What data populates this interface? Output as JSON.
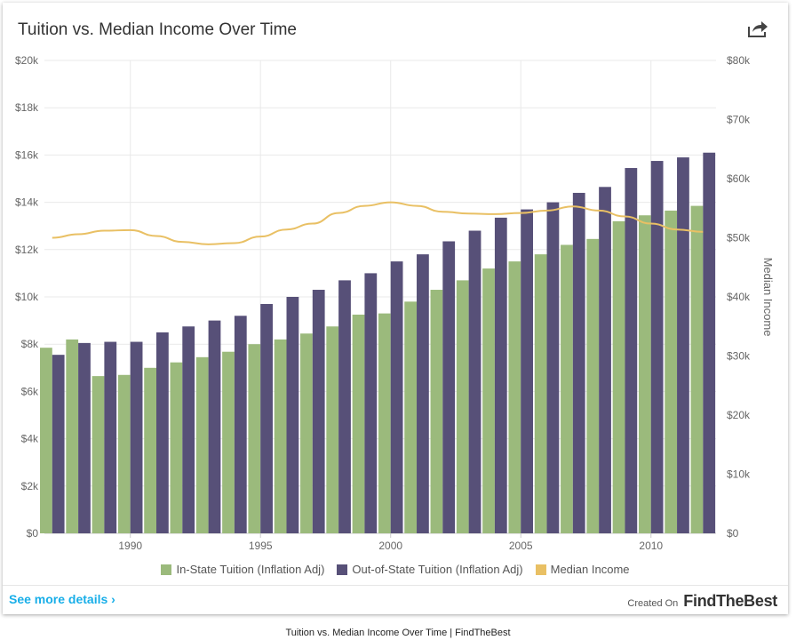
{
  "widget": {
    "title": "Tuition vs. Median Income Over Time",
    "see_more": "See more details ›",
    "created_on_label": "Created On",
    "brand": "FindTheBest",
    "share_icon": "share-icon"
  },
  "caption": "Tuition vs. Median Income Over Time | FindTheBest",
  "colors": {
    "in_state": "#9bba7c",
    "out_state": "#575078",
    "income": "#e9c064",
    "grid": "#e9e9e9",
    "link": "#18aee8"
  },
  "chart_data": {
    "type": "bar",
    "x": [
      1987,
      1988,
      1989,
      1990,
      1991,
      1992,
      1993,
      1994,
      1995,
      1996,
      1997,
      1998,
      1999,
      2000,
      2001,
      2002,
      2003,
      2004,
      2005,
      2006,
      2007,
      2008,
      2009,
      2010,
      2011,
      2012
    ],
    "x_ticks": [
      1990,
      1995,
      2000,
      2005,
      2010
    ],
    "x_tick_labels": [
      "1990",
      "1995",
      "2000",
      "2005",
      "2010"
    ],
    "xlim": [
      1986.7,
      2012.5
    ],
    "series": [
      {
        "name": "In-State Tuition (Inflation Adj)",
        "type": "bar",
        "axis": "left",
        "values": [
          7850,
          8200,
          6650,
          6700,
          7000,
          7230,
          7450,
          7680,
          8000,
          8200,
          8450,
          8750,
          9250,
          9300,
          9800,
          10300,
          10700,
          11200,
          11500,
          11800,
          12200,
          12450,
          13200,
          13450,
          13650,
          13850
        ]
      },
      {
        "name": "Out-of-State Tuition (Inflation Adj)",
        "type": "bar",
        "axis": "left",
        "values": [
          7550,
          8050,
          8100,
          8100,
          8500,
          8750,
          9000,
          9200,
          9700,
          10000,
          10300,
          10700,
          11000,
          11500,
          11800,
          12350,
          12800,
          13350,
          13700,
          14000,
          14400,
          14650,
          15450,
          15750,
          15900,
          16100
        ]
      },
      {
        "name": "Median Income",
        "type": "line",
        "axis": "right",
        "values": [
          50000,
          50600,
          51200,
          51300,
          50300,
          49300,
          48900,
          49100,
          50200,
          51400,
          52400,
          54200,
          55400,
          56000,
          55400,
          54400,
          54100,
          54000,
          54200,
          54600,
          55300,
          54600,
          53600,
          52400,
          51400,
          51000
        ]
      }
    ],
    "left_axis": {
      "ylim": [
        0,
        20000
      ],
      "ticks": [
        0,
        2000,
        4000,
        6000,
        8000,
        10000,
        12000,
        14000,
        16000,
        18000,
        20000
      ],
      "tick_labels": [
        "$0",
        "$2k",
        "$4k",
        "$6k",
        "$8k",
        "$10k",
        "$12k",
        "$14k",
        "$16k",
        "$18k",
        "$20k"
      ]
    },
    "right_axis": {
      "ylim": [
        0,
        80000
      ],
      "label": "Median Income",
      "ticks": [
        0,
        10000,
        20000,
        30000,
        40000,
        50000,
        60000,
        70000,
        80000
      ],
      "tick_labels": [
        "$0",
        "$10k",
        "$20k",
        "$30k",
        "$40k",
        "$50k",
        "$60k",
        "$70k",
        "$80k"
      ]
    },
    "grid": true,
    "legend_position": "bottom-center"
  }
}
